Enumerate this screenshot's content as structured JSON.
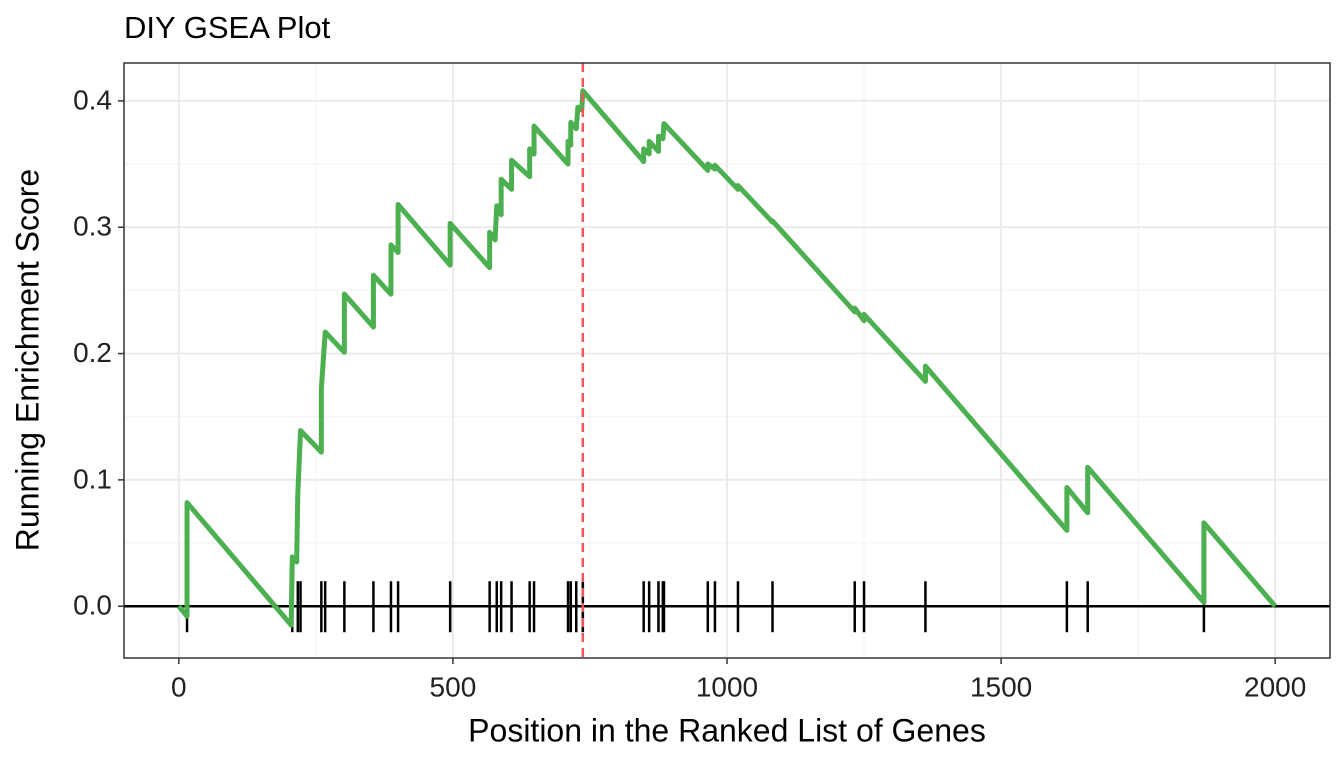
{
  "chart_data": {
    "type": "line",
    "title": "DIY GSEA Plot",
    "x_label": "Position in the Ranked List of Genes",
    "y_label": "Running Enrichment Score",
    "xlim": [
      -100,
      2100
    ],
    "ylim": [
      -0.041,
      0.43
    ],
    "xticks": [
      0,
      500,
      1000,
      1500,
      2000
    ],
    "yticks": [
      {
        "value": 0,
        "label": "0.0"
      },
      0.1,
      0.2,
      0.3,
      0.4
    ],
    "grid": true,
    "hline": 0,
    "max_position": 737,
    "max_line_color": "#f0555a",
    "hits": [
      15,
      207,
      217,
      222,
      260,
      267,
      302,
      355,
      387,
      400,
      495,
      567,
      580,
      588,
      607,
      640,
      648,
      710,
      715,
      725,
      737,
      848,
      858,
      875,
      883,
      885,
      965,
      978,
      1020,
      1083,
      1233,
      1250,
      1362,
      1620,
      1658,
      1870
    ],
    "series": [
      {
        "color": "#4caf50",
        "x": [
          0,
          15,
          15,
          205,
          207,
          215,
          217,
          222,
          260,
          260,
          267,
          302,
          302,
          355,
          355,
          387,
          387,
          400,
          400,
          495,
          495,
          567,
          567,
          577,
          580,
          588,
          588,
          607,
          607,
          640,
          640,
          648,
          648,
          710,
          710,
          715,
          715,
          725,
          728,
          735,
          737,
          848,
          848,
          858,
          858,
          875,
          875,
          883,
          885,
          965,
          965,
          978,
          978,
          1020,
          1020,
          1083,
          1083,
          1233,
          1233,
          1250,
          1250,
          1362,
          1362,
          1620,
          1620,
          1658,
          1658,
          1870,
          1870,
          2000
        ],
        "values": [
          0,
          -0.008,
          0.082,
          -0.015,
          0.039,
          0.035,
          0.088,
          0.139,
          0.122,
          0.172,
          0.217,
          0.201,
          0.247,
          0.221,
          0.262,
          0.247,
          0.286,
          0.28,
          0.318,
          0.27,
          0.303,
          0.268,
          0.296,
          0.29,
          0.317,
          0.31,
          0.338,
          0.33,
          0.353,
          0.34,
          0.362,
          0.358,
          0.38,
          0.35,
          0.368,
          0.365,
          0.383,
          0.378,
          0.395,
          0.393,
          0.408,
          0.352,
          0.362,
          0.358,
          0.368,
          0.36,
          0.372,
          0.37,
          0.382,
          0.345,
          0.35,
          0.346,
          0.349,
          0.33,
          0.333,
          0.304,
          0.305,
          0.233,
          0.236,
          0.226,
          0.231,
          0.178,
          0.19,
          0.06,
          0.094,
          0.074,
          0.11,
          0.003,
          0.066,
          0
        ]
      }
    ]
  }
}
